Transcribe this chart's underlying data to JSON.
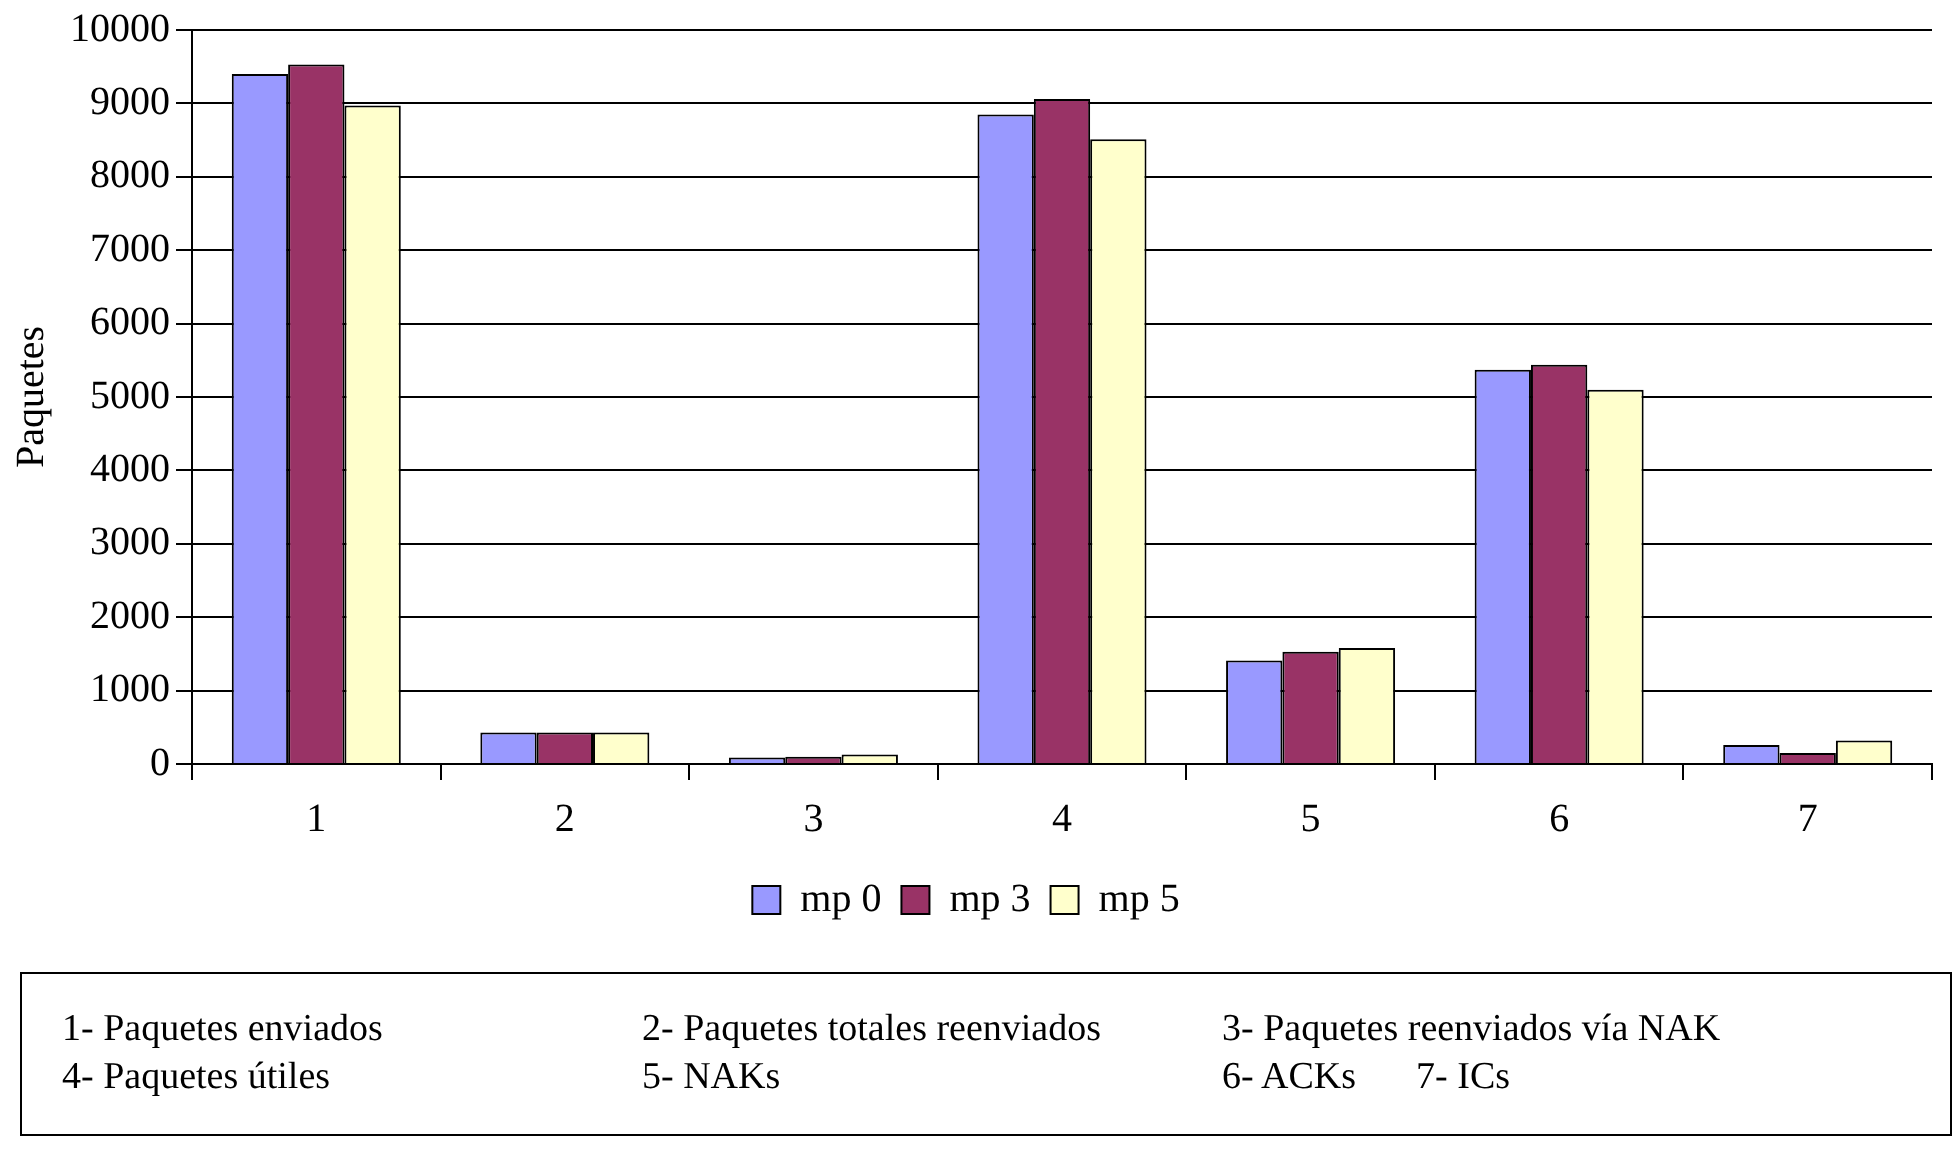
{
  "chart_data": {
    "type": "bar",
    "ylabel": "Paquetes",
    "categories": [
      "1",
      "2",
      "3",
      "4",
      "5",
      "6",
      "7"
    ],
    "series": [
      {
        "name": "mp 0",
        "color": "#9999ff",
        "values": [
          9400,
          430,
          90,
          8850,
          1410,
          5370,
          260
        ]
      },
      {
        "name": "mp 3",
        "color": "#993366",
        "values": [
          9530,
          430,
          100,
          9060,
          1530,
          5440,
          150
        ]
      },
      {
        "name": "mp 5",
        "color": "#ffffcc",
        "values": [
          8970,
          430,
          130,
          8510,
          1580,
          5100,
          320
        ]
      }
    ],
    "ylim": [
      0,
      10000
    ],
    "yticks": [
      0,
      1000,
      2000,
      3000,
      4000,
      5000,
      6000,
      7000,
      8000,
      9000,
      10000
    ],
    "grid": "y",
    "legend": "bottom",
    "annotations": [
      "1- Paquetes enviados",
      "2- Paquetes totales reenviados",
      "3- Paquetes reenviados vía NAK",
      "4- Paquetes útiles",
      "5- NAKs",
      "6- ACKs",
      "7- ICs"
    ]
  }
}
